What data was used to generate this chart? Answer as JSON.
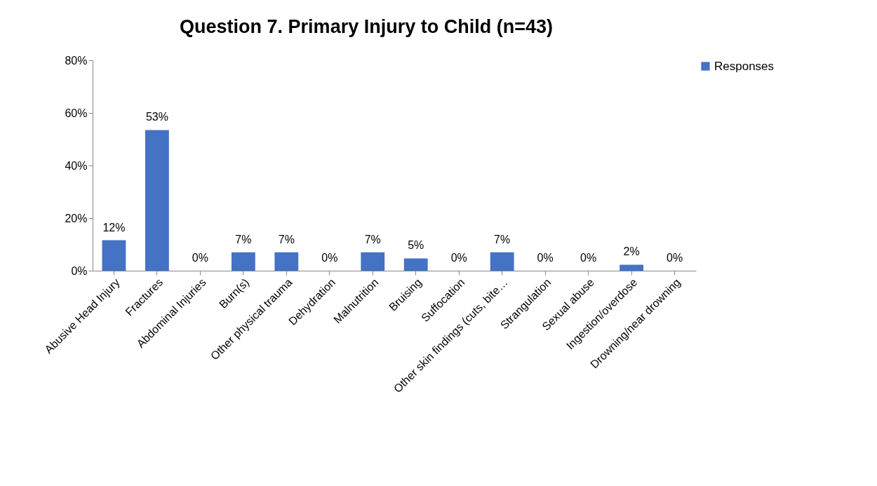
{
  "chart_data": {
    "type": "bar",
    "title": "Question 7. Primary Injury to Child (n=43)",
    "categories": [
      "Abusive Head Injury",
      "Fractures",
      "Abdominal Injuries",
      "Burn(s)",
      "Other physical trauma",
      "Dehydration",
      "Malnutrition",
      "Bruising",
      "Suffocation",
      "Other skin findings (cuts, bite…",
      "Strangulation",
      "Sexual abuse",
      "Ingestion/overdose",
      "Drowning/near drowning"
    ],
    "series": [
      {
        "name": "Responses",
        "color": "#4472c4",
        "values": [
          11.6,
          53.5,
          0,
          7.0,
          7.0,
          0,
          7.0,
          4.7,
          0,
          7.0,
          0,
          0,
          2.3,
          0
        ],
        "value_labels": [
          "12%",
          "53%",
          "0%",
          "7%",
          "7%",
          "0%",
          "7%",
          "5%",
          "0%",
          "7%",
          "0%",
          "0%",
          "2%",
          "0%"
        ]
      }
    ],
    "ylim": [
      0,
      80
    ],
    "yticks": [
      {
        "value": 0,
        "label": "0%"
      },
      {
        "value": 20,
        "label": "20%"
      },
      {
        "value": 40,
        "label": "40%"
      },
      {
        "value": 60,
        "label": "60%"
      },
      {
        "value": 80,
        "label": "80%"
      }
    ],
    "grid": false,
    "legend": "right"
  }
}
